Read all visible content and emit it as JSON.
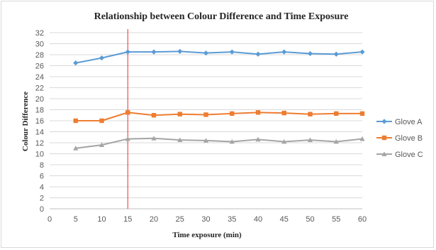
{
  "chart_data": {
    "type": "line",
    "title": "Relationship between Colour Difference and Time Exposure",
    "xlabel": "Time exposure (min)",
    "ylabel": "Colour Difference",
    "x": [
      5,
      10,
      15,
      20,
      25,
      30,
      35,
      40,
      45,
      50,
      55,
      60
    ],
    "x_ticks": [
      "0",
      "5",
      "10",
      "15",
      "20",
      "25",
      "30",
      "35",
      "40",
      "45",
      "50",
      "55",
      "60"
    ],
    "y_ticks": [
      "0",
      "2",
      "4",
      "6",
      "8",
      "10",
      "12",
      "14",
      "16",
      "18",
      "20",
      "22",
      "24",
      "26",
      "28",
      "30",
      "32"
    ],
    "xlim": [
      0,
      60
    ],
    "ylim": [
      0,
      32
    ],
    "grid": true,
    "legend_position": "right",
    "reference_line_x": 15,
    "reference_line_color": "#e3302f",
    "series": [
      {
        "name": "Glove A",
        "color": "#5b9bd5",
        "marker": "diamond",
        "values": [
          26.5,
          27.4,
          28.5,
          28.5,
          28.6,
          28.3,
          28.5,
          28.1,
          28.5,
          28.2,
          28.1,
          28.5
        ]
      },
      {
        "name": "Glove B",
        "color": "#ed7d31",
        "marker": "square",
        "values": [
          16.0,
          16.0,
          17.5,
          17.0,
          17.2,
          17.1,
          17.3,
          17.5,
          17.4,
          17.2,
          17.3,
          17.3
        ]
      },
      {
        "name": "Glove C",
        "color": "#a5a5a5",
        "marker": "triangle",
        "values": [
          11.0,
          11.6,
          12.7,
          12.8,
          12.5,
          12.4,
          12.2,
          12.6,
          12.2,
          12.5,
          12.2,
          12.7
        ]
      }
    ]
  }
}
